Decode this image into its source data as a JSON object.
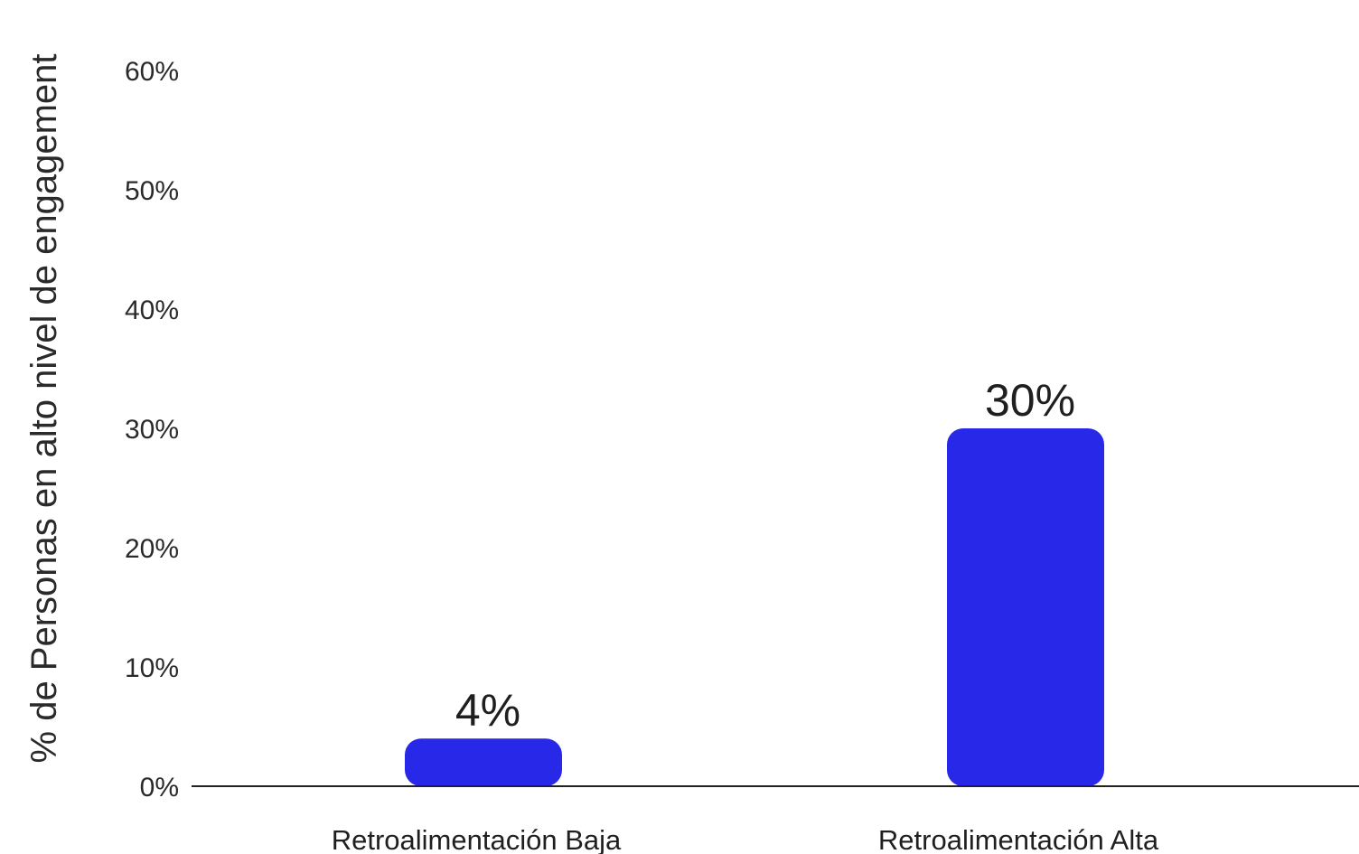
{
  "chart_data": {
    "type": "bar",
    "title": "",
    "xlabel": "",
    "ylabel": "% de Personas en alto nivel de engagement",
    "categories": [
      "Retroalimentación Baja",
      "Retroalimentación Alta"
    ],
    "values": [
      4,
      30
    ],
    "value_labels": [
      "4%",
      "30%"
    ],
    "ylim": [
      0,
      60
    ],
    "y_ticks": [
      0,
      10,
      20,
      30,
      40,
      50,
      60
    ],
    "y_tick_labels": [
      "0%",
      "10%",
      "20%",
      "30%",
      "40%",
      "50%",
      "60%"
    ],
    "grid": false,
    "legend": "none",
    "colors": {
      "bar": "#2828e8",
      "axis": "#222222",
      "text": "#1f1f1f"
    }
  }
}
